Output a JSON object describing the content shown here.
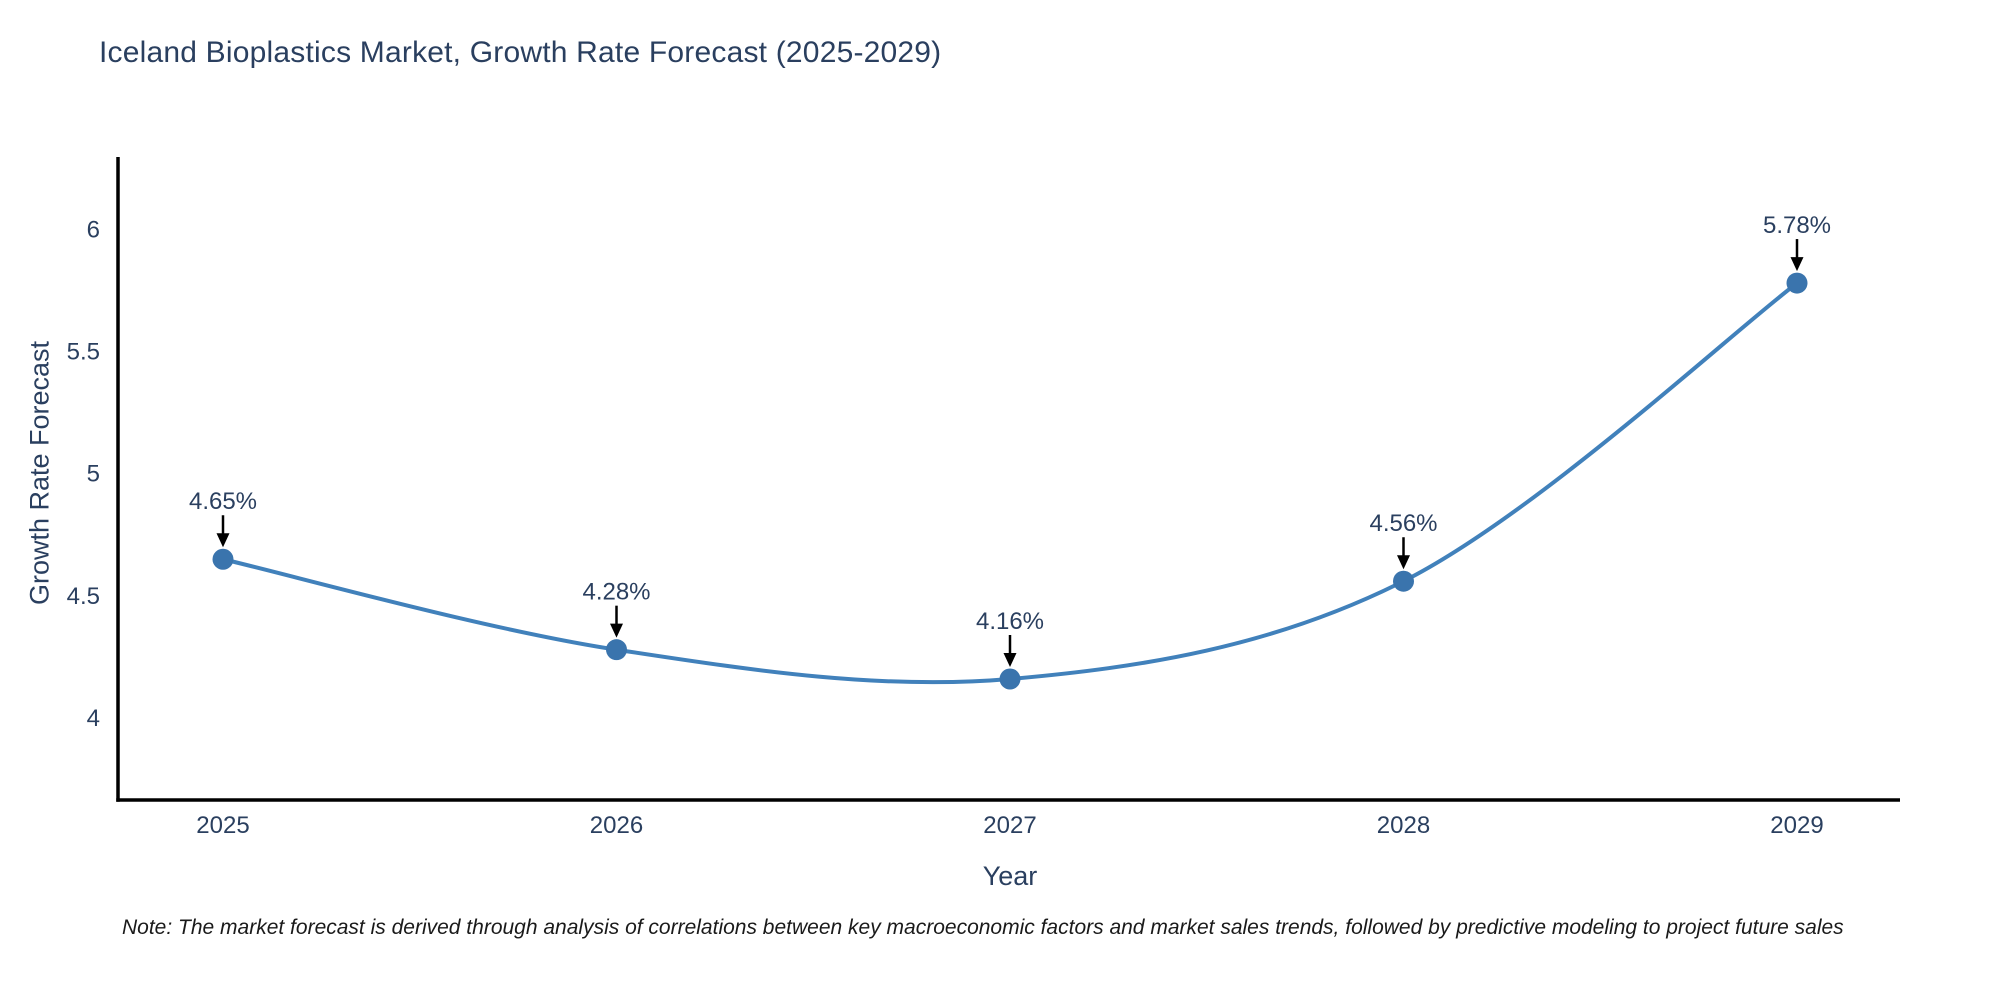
{
  "page": {
    "title": "Iceland Bioplastics Market, Growth Rate Forecast (2025-2029)",
    "note": "Note: The market forecast is derived through analysis of correlations between key macroeconomic factors and market sales trends, followed by predictive modeling to project future sales"
  },
  "chart_data": {
    "type": "line",
    "title": "Iceland Bioplastics Market, Growth Rate Forecast (2025-2029)",
    "xlabel": "Year",
    "ylabel": "Growth Rate Forecast",
    "x": [
      2025,
      2026,
      2027,
      2028,
      2029
    ],
    "series": [
      {
        "name": "Growth Rate Forecast",
        "values": [
          4.65,
          4.28,
          4.16,
          4.56,
          5.78
        ],
        "point_labels": [
          "4.65%",
          "4.28%",
          "4.16%",
          "4.56%",
          "5.78%"
        ]
      }
    ],
    "x_ticks": [
      "2025",
      "2026",
      "2027",
      "2028",
      "2029"
    ],
    "y_ticks": [
      4,
      4.5,
      5,
      5.5,
      6
    ],
    "ylim": [
      3.66,
      6.31
    ],
    "line_style": "spline",
    "grid": false,
    "legend": "none",
    "annotations": "each data point labeled with percentage and black down-arrow",
    "colors": {
      "line": "#4181bb",
      "marker": "#3a74ad",
      "arrow": "#000000",
      "label_text": "#2a3f5f",
      "axis_line": "#000000",
      "note_text": "#1a1a1a",
      "background": "#ffffff"
    }
  }
}
